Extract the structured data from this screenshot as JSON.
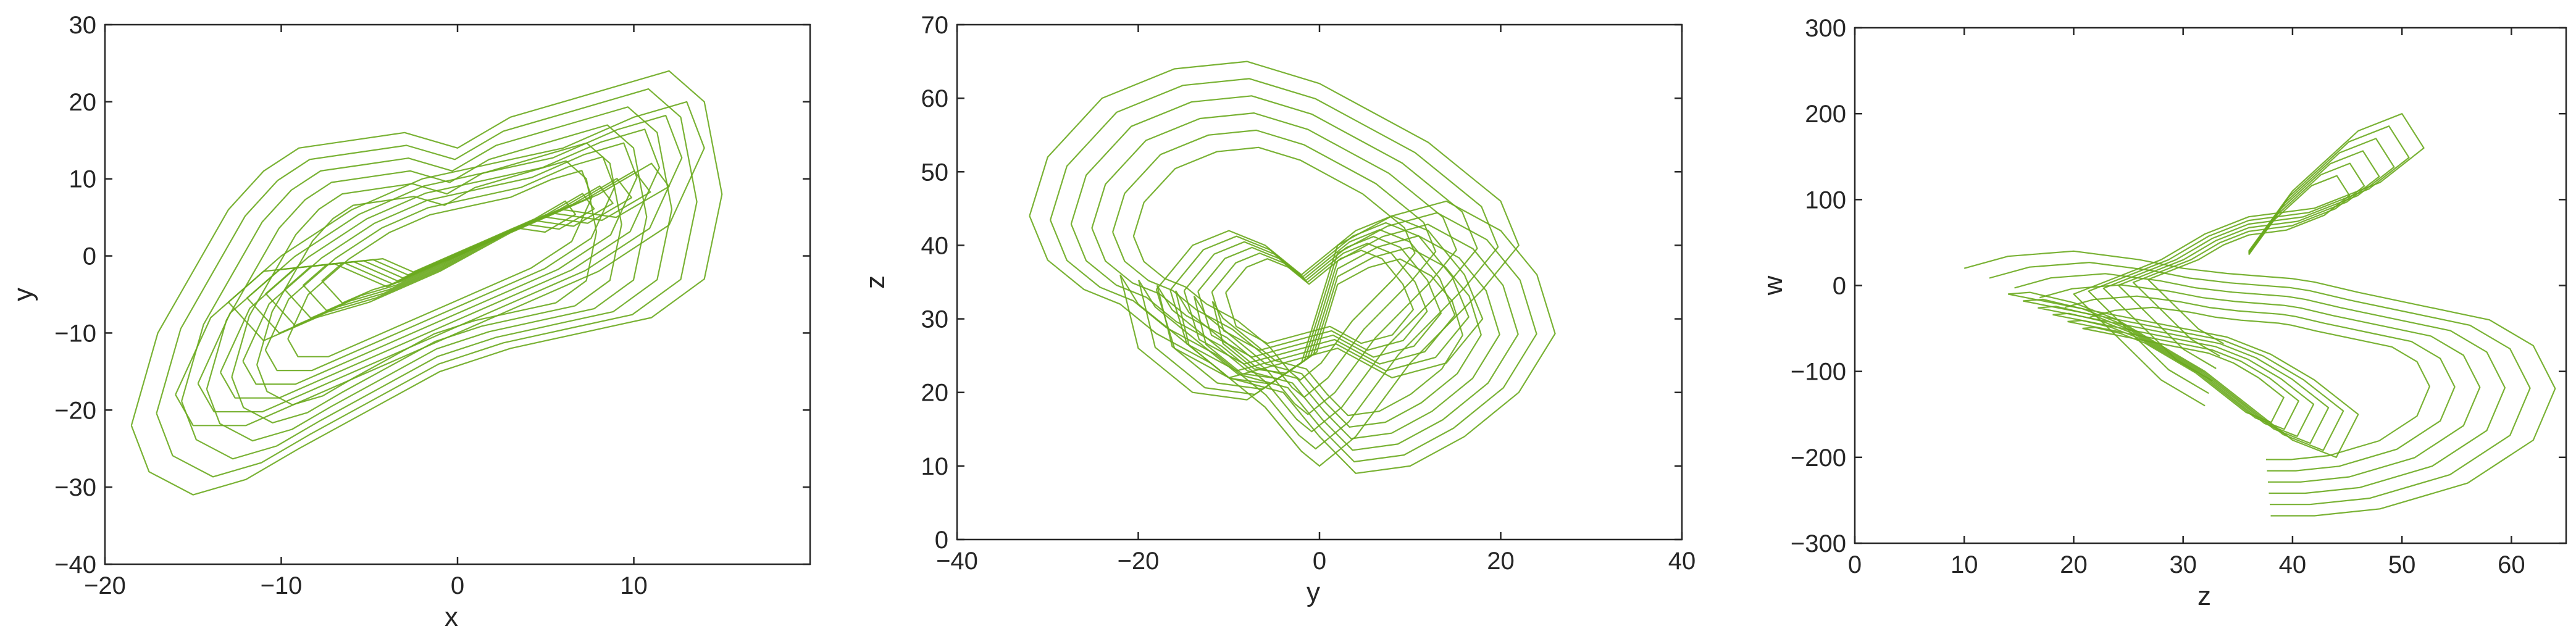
{
  "colors": {
    "trace": "#6aaa1e",
    "axes": "#262626",
    "background": "#ffffff"
  },
  "chart_data": [
    {
      "type": "line",
      "xlabel": "x",
      "ylabel": "y",
      "xlim": [
        -20,
        20
      ],
      "ylim": [
        -40,
        30
      ],
      "xticks": [
        -20,
        -10,
        0,
        10
      ],
      "yticks": [
        -40,
        -30,
        -20,
        -10,
        0,
        10,
        20,
        30
      ],
      "series": [
        {
          "x": [
            -18.5,
            -17,
            -15,
            -13,
            -11,
            -9,
            -6,
            -3,
            0,
            3,
            6,
            9,
            12,
            14,
            15,
            14,
            11,
            7,
            3,
            -1,
            -5,
            -9,
            -12,
            -15,
            -17.5,
            -18.5
          ],
          "y": [
            -22,
            -10,
            -2,
            6,
            11,
            14,
            15,
            16,
            14,
            18,
            20,
            22,
            24,
            20,
            8,
            -3,
            -8,
            -10,
            -12,
            -15,
            -20,
            -25,
            -29,
            -31,
            -28,
            -22
          ]
        },
        {
          "x": [
            -8,
            -11,
            -13,
            -11,
            -7,
            -4,
            0,
            4,
            8,
            11,
            12,
            9,
            6,
            3,
            -1,
            -5,
            -8
          ],
          "y": [
            -8,
            -11,
            -6,
            -2,
            -1,
            -4,
            0,
            4,
            8,
            12,
            9,
            5,
            6,
            3,
            -2,
            -6,
            -8
          ]
        },
        {
          "x": [
            -16,
            -14,
            -10,
            -6,
            -2,
            2,
            6,
            10,
            13,
            14,
            12,
            8,
            4,
            0,
            -4,
            -8,
            -12,
            -15,
            -16
          ],
          "y": [
            -18,
            -8,
            0,
            6,
            10,
            12,
            14,
            18,
            20,
            14,
            4,
            -2,
            -6,
            -10,
            -14,
            -18,
            -22,
            -22,
            -18
          ]
        }
      ]
    },
    {
      "type": "line",
      "xlabel": "y",
      "ylabel": "z",
      "xlim": [
        -40,
        40
      ],
      "ylim": [
        0,
        70
      ],
      "xticks": [
        -40,
        -20,
        0,
        20,
        40
      ],
      "yticks": [
        0,
        10,
        20,
        30,
        40,
        50,
        60,
        70
      ],
      "series": [
        {
          "x": [
            -32,
            -30,
            -24,
            -16,
            -8,
            0,
            6,
            12,
            16,
            20,
            22,
            18,
            10,
            4,
            0,
            -2,
            -6,
            -12,
            -18,
            -22,
            -26,
            -30,
            -32
          ],
          "y": [
            44,
            52,
            60,
            64,
            65,
            62,
            58,
            54,
            50,
            46,
            40,
            34,
            24,
            14,
            10,
            12,
            18,
            24,
            28,
            32,
            34,
            38,
            44
          ]
        },
        {
          "x": [
            -22,
            -20,
            -14,
            -8,
            -2,
            0,
            2,
            8,
            14,
            20,
            24,
            26,
            22,
            16,
            10,
            4,
            0,
            -4,
            -10,
            -16,
            -20,
            -22
          ],
          "y": [
            36,
            26,
            20,
            19,
            24,
            32,
            40,
            44,
            46,
            42,
            36,
            28,
            20,
            14,
            10,
            9,
            14,
            20,
            22,
            28,
            32,
            36
          ]
        },
        {
          "x": [
            -18,
            -14,
            -10,
            -6,
            -2,
            0,
            4,
            8,
            12,
            16,
            18,
            14,
            8,
            2,
            -4,
            -10,
            -16,
            -18
          ],
          "y": [
            34,
            40,
            42,
            40,
            36,
            38,
            42,
            44,
            42,
            36,
            30,
            24,
            22,
            26,
            24,
            22,
            26,
            34
          ]
        }
      ]
    },
    {
      "type": "line",
      "xlabel": "z",
      "ylabel": "w",
      "xlim": [
        0,
        65
      ],
      "ylim": [
        -300,
        300
      ],
      "xticks": [
        0,
        10,
        20,
        30,
        40,
        50,
        60
      ],
      "yticks": [
        -300,
        -200,
        -100,
        0,
        100,
        200,
        300
      ],
      "series": [
        {
          "x": [
            10,
            14,
            20,
            26,
            30,
            34,
            38,
            40,
            42,
            46,
            52,
            58,
            62,
            64,
            62,
            56,
            48,
            42,
            38
          ],
          "y": [
            20,
            34,
            40,
            30,
            20,
            14,
            10,
            8,
            4,
            -8,
            -24,
            -40,
            -70,
            -120,
            -180,
            -230,
            -260,
            -268,
            -268
          ]
        },
        {
          "x": [
            36,
            40,
            46,
            50,
            52,
            48,
            42,
            36,
            32,
            28,
            24,
            20,
            24,
            28,
            32
          ],
          "y": [
            40,
            110,
            180,
            200,
            160,
            120,
            90,
            80,
            60,
            30,
            10,
            -10,
            -60,
            -110,
            -140
          ]
        },
        {
          "x": [
            14,
            18,
            22,
            26,
            30,
            34,
            38,
            42,
            46,
            44,
            40,
            36,
            32,
            28,
            24,
            20,
            16,
            14
          ],
          "y": [
            -10,
            -20,
            -30,
            -40,
            -50,
            -60,
            -80,
            -110,
            -150,
            -200,
            -180,
            -140,
            -100,
            -70,
            -40,
            -20,
            -8,
            -10
          ]
        }
      ]
    }
  ]
}
